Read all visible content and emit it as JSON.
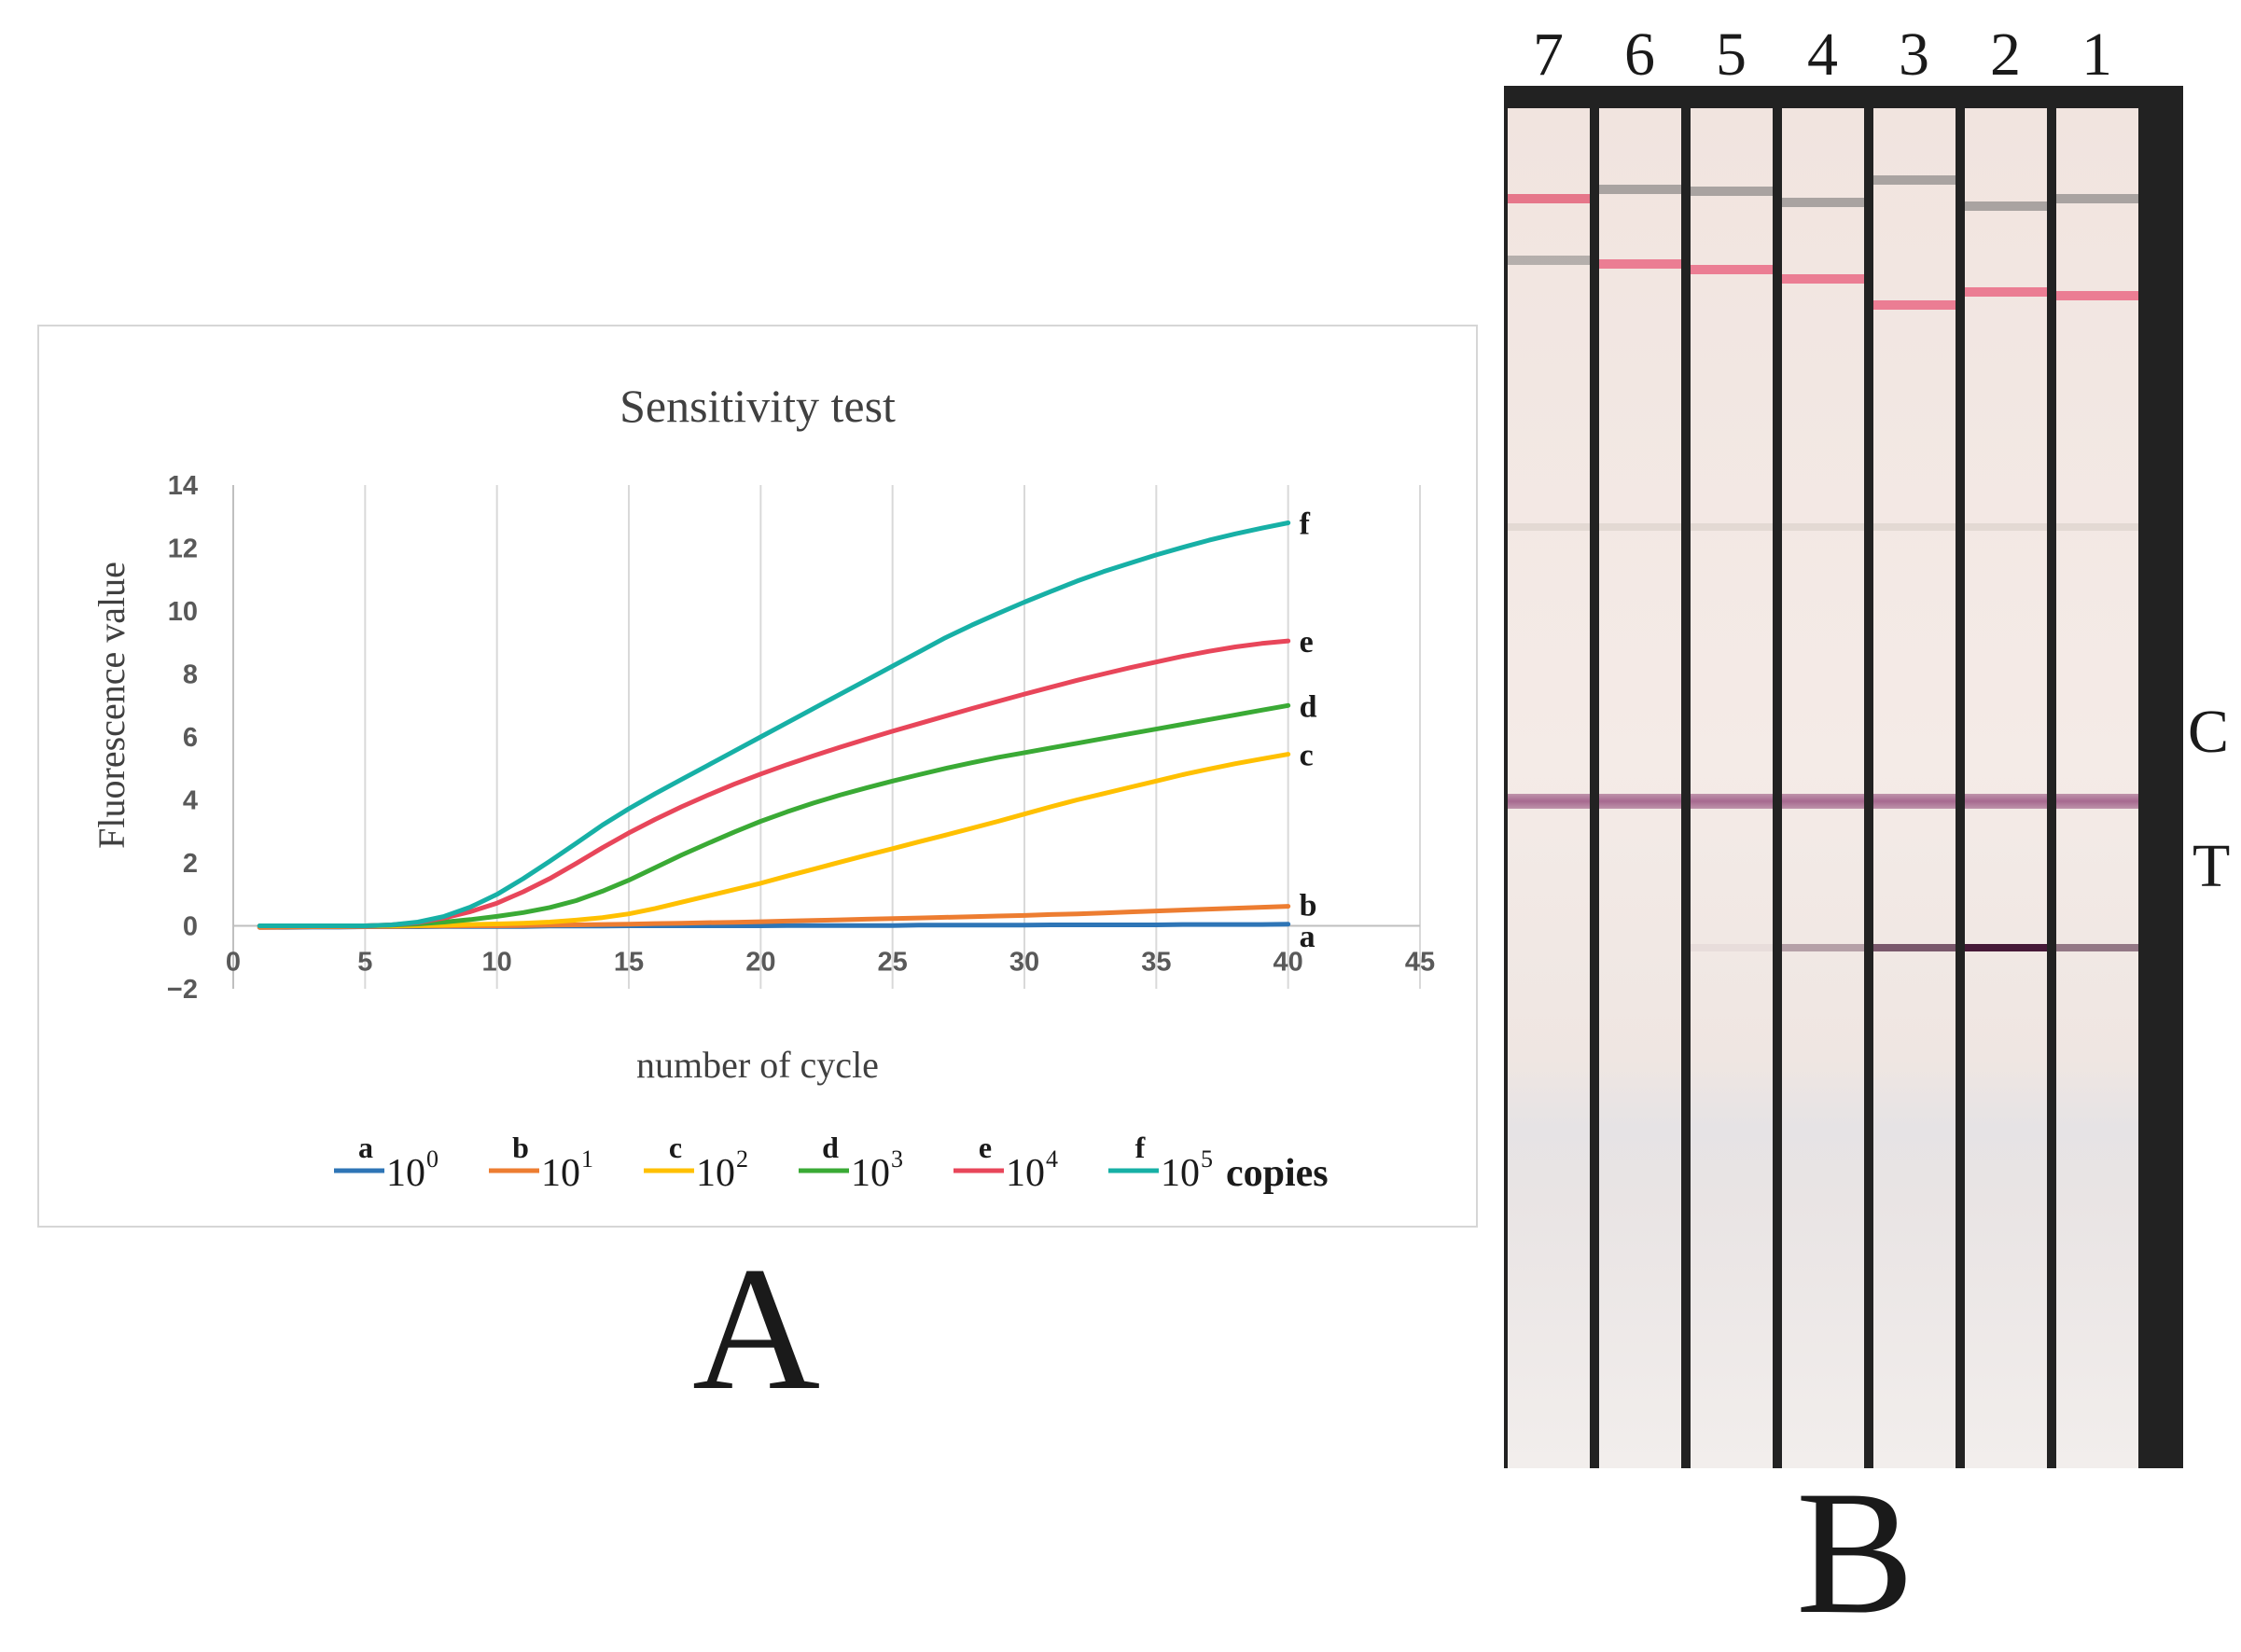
{
  "panel_a": {
    "label": "A",
    "chart_data": {
      "type": "line",
      "title": "Sensitivity test",
      "xlabel": "number of cycle",
      "ylabel": "Fluorescence value",
      "xlim": [
        0,
        45
      ],
      "ylim": [
        -2,
        14
      ],
      "xticks": [
        0,
        5,
        10,
        15,
        20,
        25,
        30,
        35,
        40,
        45
      ],
      "yticks": [
        -2,
        0,
        2,
        4,
        6,
        8,
        10,
        12,
        14
      ],
      "ytick_labels": [
        "−2",
        "0",
        "2",
        "4",
        "6",
        "8",
        "10",
        "12",
        "14"
      ],
      "grid": "vertical",
      "x": [
        1,
        2,
        3,
        4,
        5,
        6,
        7,
        8,
        9,
        10,
        11,
        12,
        13,
        14,
        15,
        16,
        17,
        18,
        19,
        20,
        21,
        22,
        23,
        24,
        25,
        26,
        27,
        28,
        29,
        30,
        31,
        32,
        33,
        34,
        35,
        36,
        37,
        38,
        39,
        40
      ],
      "series": [
        {
          "name": "a",
          "color": "#2e75b6",
          "end_label": "a",
          "values": [
            -0.05,
            -0.05,
            -0.04,
            -0.04,
            -0.03,
            -0.03,
            -0.03,
            -0.02,
            -0.02,
            -0.02,
            -0.02,
            -0.01,
            -0.01,
            -0.01,
            0.0,
            0.0,
            0.0,
            0.0,
            0.0,
            0.0,
            0.01,
            0.01,
            0.01,
            0.01,
            0.01,
            0.02,
            0.02,
            0.02,
            0.02,
            0.02,
            0.03,
            0.03,
            0.03,
            0.03,
            0.03,
            0.04,
            0.04,
            0.04,
            0.04,
            0.05
          ]
        },
        {
          "name": "b",
          "color": "#ed7d31",
          "end_label": "b",
          "values": [
            -0.05,
            -0.04,
            -0.03,
            -0.03,
            -0.02,
            -0.02,
            -0.01,
            -0.01,
            0.0,
            0.0,
            0.01,
            0.02,
            0.03,
            0.04,
            0.05,
            0.07,
            0.08,
            0.1,
            0.11,
            0.13,
            0.15,
            0.17,
            0.19,
            0.21,
            0.23,
            0.25,
            0.27,
            0.29,
            0.31,
            0.33,
            0.36,
            0.38,
            0.41,
            0.44,
            0.47,
            0.5,
            0.53,
            0.56,
            0.59,
            0.62
          ]
        },
        {
          "name": "c",
          "color": "#ffc000",
          "end_label": "c",
          "values": [
            0.0,
            0.0,
            0.0,
            0.0,
            0.0,
            0.0,
            0.01,
            0.02,
            0.04,
            0.06,
            0.08,
            0.12,
            0.18,
            0.26,
            0.38,
            0.55,
            0.75,
            0.95,
            1.15,
            1.35,
            1.58,
            1.8,
            2.02,
            2.24,
            2.45,
            2.67,
            2.88,
            3.1,
            3.32,
            3.55,
            3.78,
            4.0,
            4.2,
            4.4,
            4.6,
            4.8,
            4.98,
            5.15,
            5.3,
            5.45
          ]
        },
        {
          "name": "d",
          "color": "#3aaa35",
          "end_label": "d",
          "values": [
            0.0,
            0.0,
            0.0,
            0.0,
            0.0,
            0.02,
            0.06,
            0.12,
            0.2,
            0.3,
            0.42,
            0.58,
            0.8,
            1.1,
            1.45,
            1.85,
            2.25,
            2.62,
            2.98,
            3.32,
            3.62,
            3.9,
            4.15,
            4.38,
            4.6,
            4.8,
            5.0,
            5.18,
            5.35,
            5.5,
            5.65,
            5.8,
            5.95,
            6.1,
            6.25,
            6.4,
            6.55,
            6.7,
            6.85,
            7.0
          ]
        },
        {
          "name": "e",
          "color": "#e8465a",
          "end_label": "e",
          "values": [
            0.0,
            0.0,
            0.0,
            0.0,
            0.0,
            0.03,
            0.1,
            0.25,
            0.45,
            0.72,
            1.08,
            1.5,
            1.98,
            2.48,
            2.95,
            3.38,
            3.78,
            4.15,
            4.5,
            4.82,
            5.12,
            5.4,
            5.67,
            5.93,
            6.18,
            6.42,
            6.66,
            6.9,
            7.13,
            7.36,
            7.58,
            7.8,
            8.0,
            8.2,
            8.38,
            8.56,
            8.72,
            8.86,
            8.97,
            9.05
          ]
        },
        {
          "name": "f",
          "color": "#17b0a6",
          "end_label": "f",
          "values": [
            0.0,
            0.0,
            0.0,
            0.0,
            0.0,
            0.03,
            0.12,
            0.3,
            0.6,
            1.0,
            1.5,
            2.05,
            2.62,
            3.2,
            3.72,
            4.2,
            4.65,
            5.1,
            5.55,
            6.0,
            6.45,
            6.9,
            7.35,
            7.8,
            8.25,
            8.7,
            9.15,
            9.55,
            9.92,
            10.28,
            10.62,
            10.95,
            11.25,
            11.52,
            11.78,
            12.02,
            12.25,
            12.45,
            12.63,
            12.8
          ]
        }
      ],
      "legend": {
        "placement": "bottom",
        "entries": [
          {
            "letter": "a",
            "base": "10",
            "exponent": "0",
            "color": "#2e75b6"
          },
          {
            "letter": "b",
            "base": "10",
            "exponent": "1",
            "color": "#ed7d31"
          },
          {
            "letter": "c",
            "base": "10",
            "exponent": "2",
            "color": "#ffc000"
          },
          {
            "letter": "d",
            "base": "10",
            "exponent": "3",
            "color": "#3aaa35"
          },
          {
            "letter": "e",
            "base": "10",
            "exponent": "4",
            "color": "#e8465a"
          },
          {
            "letter": "f",
            "base": "10",
            "exponent": "5",
            "color": "#17b0a6"
          }
        ],
        "suffix": "copies"
      }
    }
  },
  "panel_b": {
    "label": "B",
    "lanes": [
      "7",
      "6",
      "5",
      "4",
      "3",
      "2",
      "1"
    ],
    "control_line_label": "C",
    "test_line_label": "T",
    "test_line_intensity": {
      "7": 0,
      "6": 0,
      "5": 0.05,
      "4": 0.35,
      "3": 0.7,
      "2": 1.0,
      "1": 0.55
    }
  }
}
